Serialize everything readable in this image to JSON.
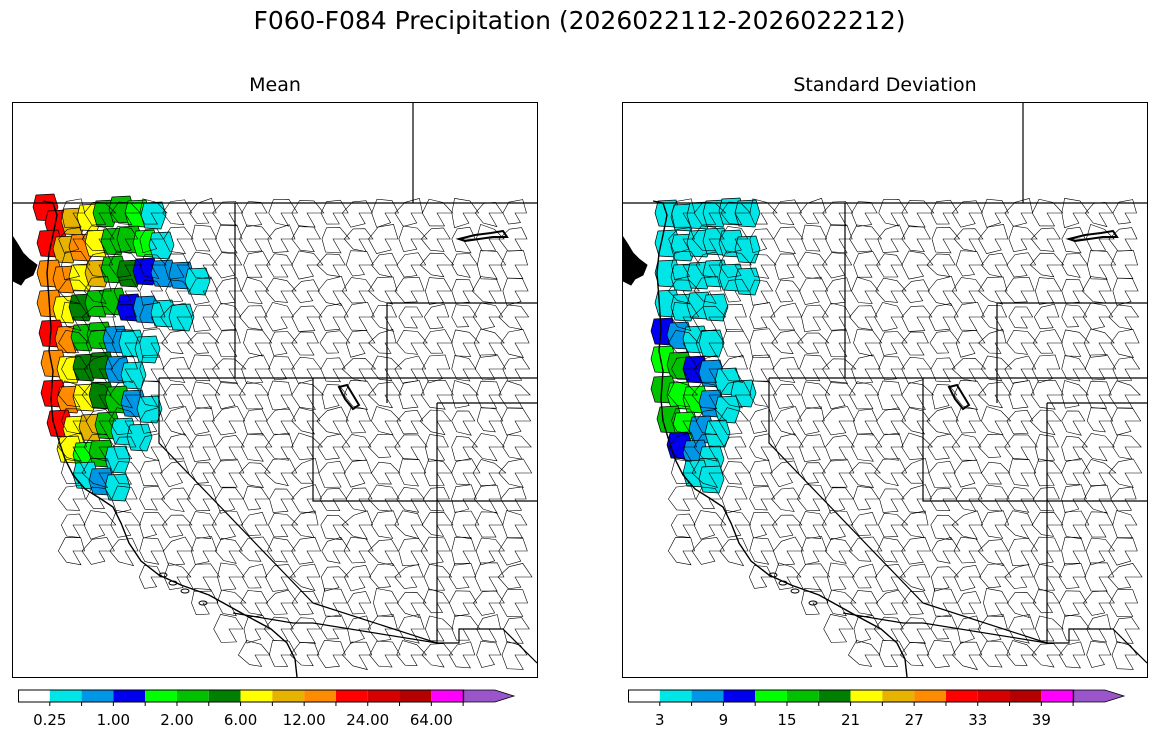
{
  "title": "F060-F084 Precipitation (2026022112-2026022212)",
  "panels": [
    {
      "title": "Mean",
      "colorbar": {
        "colors": [
          "#ffffff",
          "#00e5e5",
          "#0096e6",
          "#0000ee",
          "#00ff00",
          "#00c000",
          "#008000",
          "#ffff00",
          "#e6b400",
          "#ff8c00",
          "#ff0000",
          "#d70000",
          "#b40000",
          "#ff00ff",
          "#9955c9"
        ],
        "tick_labels": [
          "0.25",
          "1.00",
          "2.00",
          "6.00",
          "12.00",
          "24.00",
          "64.00"
        ]
      }
    },
    {
      "title": "Standard Deviation",
      "colorbar": {
        "colors": [
          "#ffffff",
          "#00e5e5",
          "#0096e6",
          "#0000ee",
          "#00ff00",
          "#00c000",
          "#008000",
          "#ffff00",
          "#e6b400",
          "#ff8c00",
          "#ff0000",
          "#d70000",
          "#b40000",
          "#ff00ff",
          "#9955c9"
        ],
        "tick_labels": [
          "3",
          "9",
          "15",
          "21",
          "27",
          "33",
          "39"
        ]
      }
    }
  ]
}
